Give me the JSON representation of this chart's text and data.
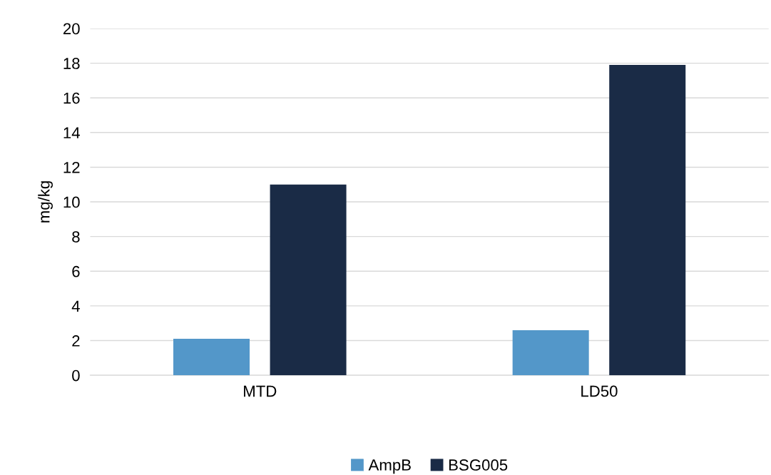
{
  "chart_data": {
    "type": "bar",
    "ylabel": "mg/kg",
    "categories": [
      "MTD",
      "LD50"
    ],
    "series": [
      {
        "name": "AmpB",
        "color": "#5397c9",
        "values": [
          2.1,
          2.6
        ]
      },
      {
        "name": "BSG005",
        "color": "#1a2b46",
        "values": [
          11,
          17.9
        ]
      }
    ],
    "ylim": [
      0,
      20
    ],
    "yticks": [
      0,
      2,
      4,
      6,
      8,
      10,
      12,
      14,
      16,
      18,
      20
    ],
    "grid": "y",
    "legend": "bottom"
  }
}
